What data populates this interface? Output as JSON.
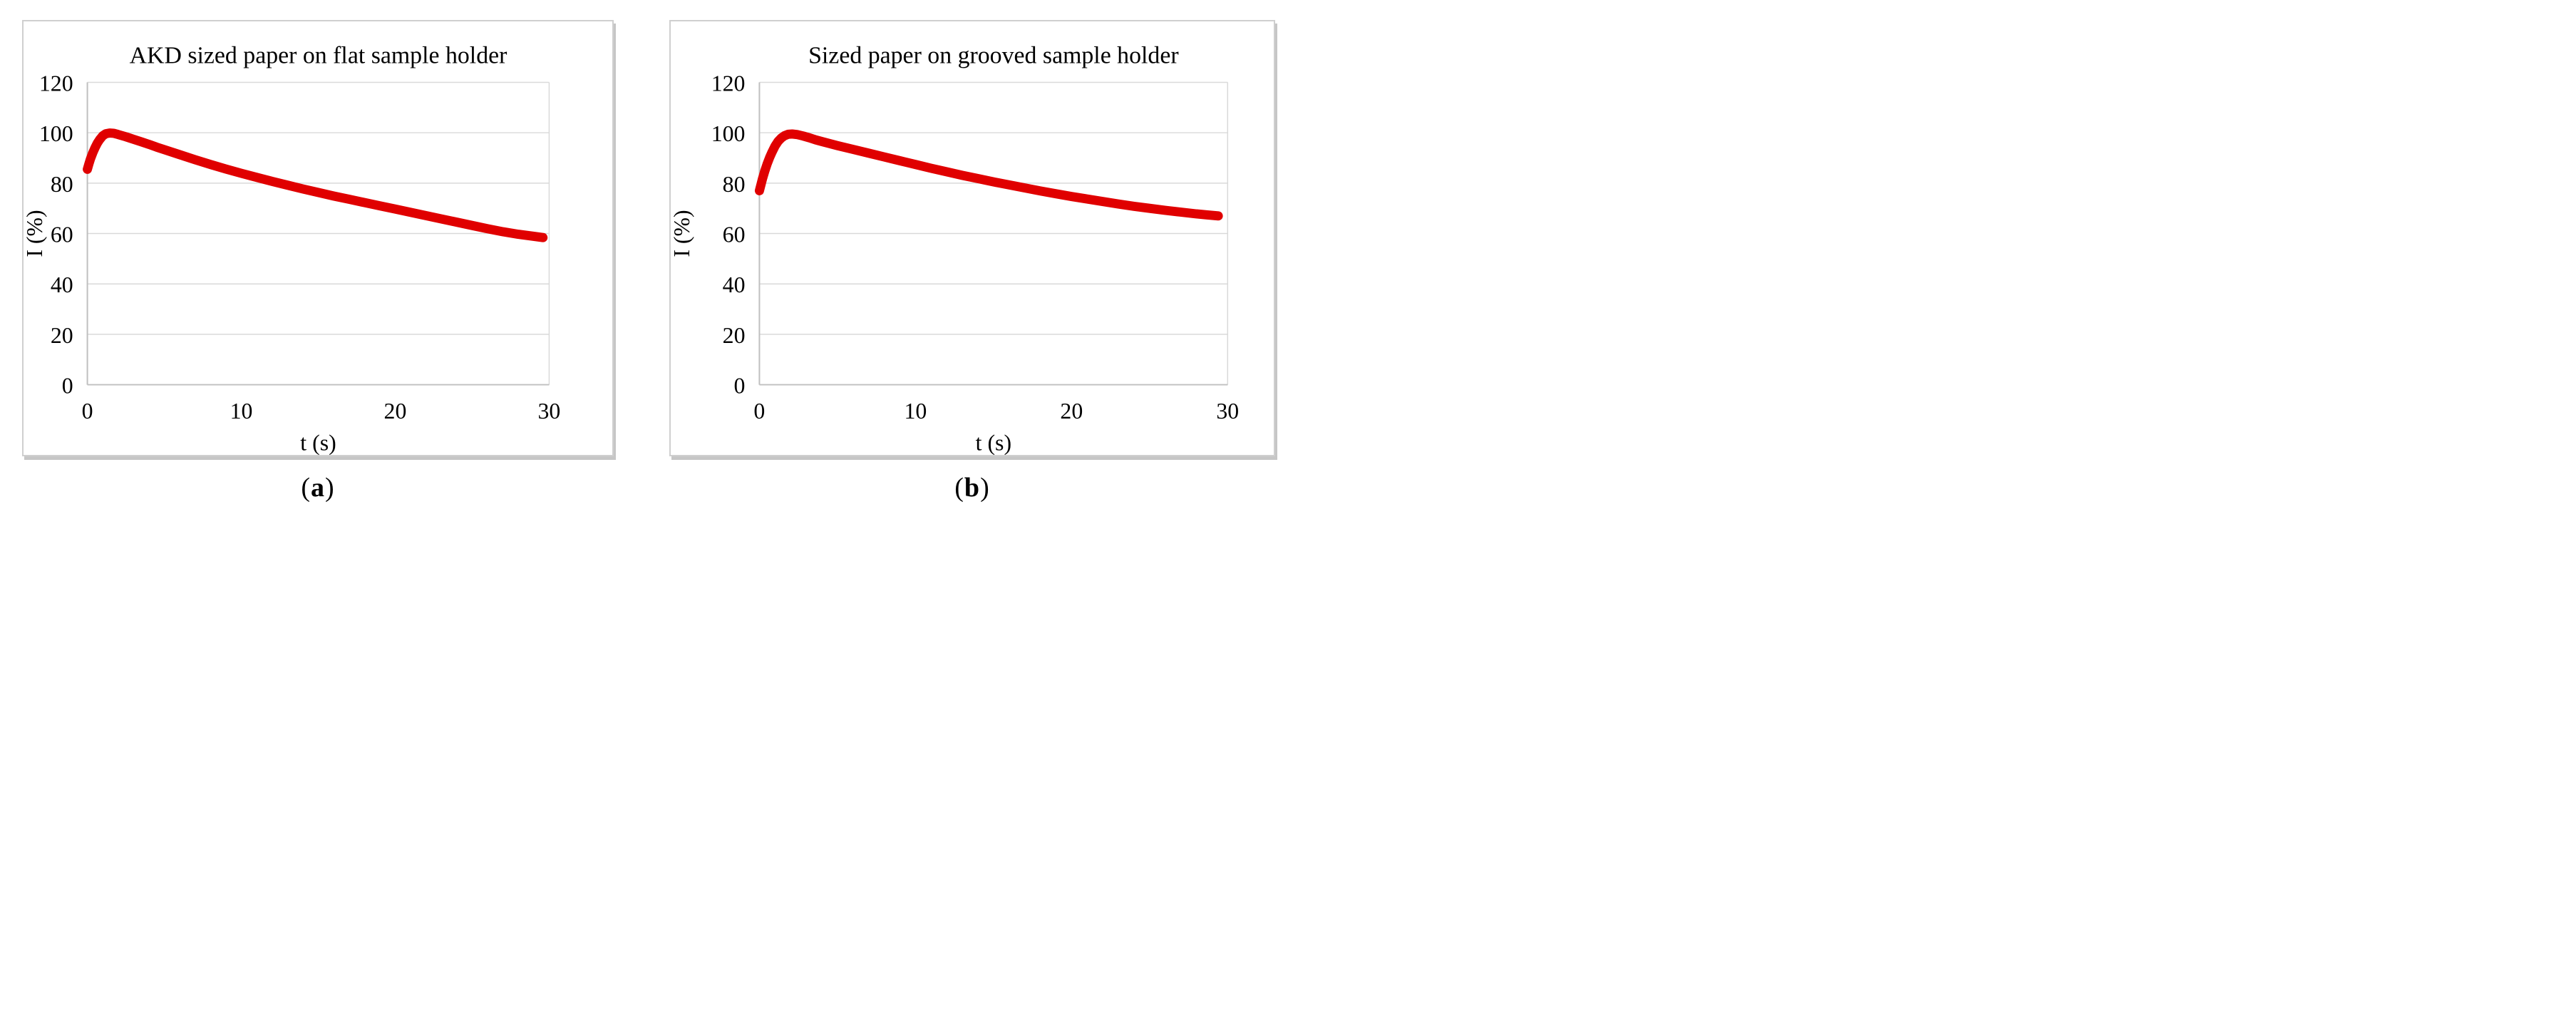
{
  "figure": {
    "description": "Two-panel luminescence decay figure",
    "captions": [
      {
        "open": "(",
        "letter": "a",
        "close": ")"
      },
      {
        "open": "(",
        "letter": "b",
        "close": ")"
      }
    ]
  },
  "chart_data": [
    {
      "type": "line",
      "title": "AKD sized paper on flat sample holder",
      "xlabel": "t (s)",
      "ylabel": "I (%)",
      "xlim": [
        0,
        30
      ],
      "ylim": [
        0,
        120
      ],
      "x_ticks": [
        0,
        10,
        20,
        30
      ],
      "y_ticks": [
        0,
        20,
        40,
        60,
        80,
        100,
        120
      ],
      "grid": "horizontal",
      "legend": "none",
      "line_color": "#e00000",
      "gridline_color": "#d9d9d9",
      "axis_color": "#bfbfbf",
      "series": [
        {
          "name": "intensity-decay",
          "points": [
            [
              0,
              85.5
            ],
            [
              0.1,
              87.6
            ],
            [
              0.2,
              89.6
            ],
            [
              0.35,
              92.0
            ],
            [
              0.5,
              94.1
            ],
            [
              0.65,
              95.9
            ],
            [
              0.8,
              97.3
            ],
            [
              1.0,
              98.8
            ],
            [
              1.2,
              99.6
            ],
            [
              1.45,
              99.9
            ],
            [
              1.7,
              99.8
            ],
            [
              2.0,
              99.3
            ],
            [
              2.5,
              98.4
            ],
            [
              3.0,
              97.4
            ],
            [
              3.5,
              96.4
            ],
            [
              4.0,
              95.4
            ],
            [
              4.5,
              94.3
            ],
            [
              5.0,
              93.3
            ],
            [
              6.0,
              91.3
            ],
            [
              7.0,
              89.3
            ],
            [
              8.0,
              87.4
            ],
            [
              9.0,
              85.6
            ],
            [
              10.0,
              83.9
            ],
            [
              11.0,
              82.3
            ],
            [
              12.0,
              80.7
            ],
            [
              13.0,
              79.2
            ],
            [
              14.0,
              77.7
            ],
            [
              15.0,
              76.3
            ],
            [
              16.0,
              74.9
            ],
            [
              17.0,
              73.6
            ],
            [
              18.0,
              72.3
            ],
            [
              19.0,
              71.0
            ],
            [
              20.0,
              69.7
            ],
            [
              21.0,
              68.4
            ],
            [
              22.0,
              67.1
            ],
            [
              23.0,
              65.8
            ],
            [
              24.0,
              64.5
            ],
            [
              25.0,
              63.2
            ],
            [
              26.0,
              61.9
            ],
            [
              27.0,
              60.7
            ],
            [
              28.0,
              59.7
            ],
            [
              29.0,
              58.9
            ],
            [
              29.6,
              58.4
            ]
          ]
        }
      ]
    },
    {
      "type": "line",
      "title": "Sized paper on grooved sample holder",
      "xlabel": "t (s)",
      "ylabel": "I (%)",
      "xlim": [
        0,
        30
      ],
      "ylim": [
        0,
        120
      ],
      "x_ticks": [
        0,
        10,
        20,
        30
      ],
      "y_ticks": [
        0,
        20,
        40,
        60,
        80,
        100,
        120
      ],
      "grid": "horizontal",
      "legend": "none",
      "line_color": "#e00000",
      "gridline_color": "#d9d9d9",
      "axis_color": "#bfbfbf",
      "series": [
        {
          "name": "intensity-decay",
          "points": [
            [
              0,
              77.0
            ],
            [
              0.1,
              79.4
            ],
            [
              0.2,
              81.8
            ],
            [
              0.35,
              84.9
            ],
            [
              0.5,
              87.7
            ],
            [
              0.65,
              90.1
            ],
            [
              0.8,
              92.2
            ],
            [
              1.0,
              94.7
            ],
            [
              1.2,
              96.6
            ],
            [
              1.4,
              97.9
            ],
            [
              1.6,
              98.8
            ],
            [
              1.85,
              99.4
            ],
            [
              2.1,
              99.5
            ],
            [
              2.4,
              99.3
            ],
            [
              2.8,
              98.7
            ],
            [
              3.2,
              98.0
            ],
            [
              3.6,
              97.2
            ],
            [
              4.0,
              96.5
            ],
            [
              4.5,
              95.7
            ],
            [
              5.0,
              94.9
            ],
            [
              6.0,
              93.4
            ],
            [
              7.0,
              91.9
            ],
            [
              8.0,
              90.4
            ],
            [
              9.0,
              88.9
            ],
            [
              10.0,
              87.4
            ],
            [
              11.0,
              85.9
            ],
            [
              12.0,
              84.5
            ],
            [
              13.0,
              83.1
            ],
            [
              14.0,
              81.8
            ],
            [
              15.0,
              80.5
            ],
            [
              16.0,
              79.3
            ],
            [
              17.0,
              78.1
            ],
            [
              18.0,
              76.9
            ],
            [
              19.0,
              75.8
            ],
            [
              20.0,
              74.7
            ],
            [
              21.0,
              73.7
            ],
            [
              22.0,
              72.7
            ],
            [
              23.0,
              71.7
            ],
            [
              24.0,
              70.8
            ],
            [
              25.0,
              70.0
            ],
            [
              26.0,
              69.2
            ],
            [
              27.0,
              68.5
            ],
            [
              28.0,
              67.8
            ],
            [
              28.7,
              67.4
            ],
            [
              29.4,
              67.0
            ]
          ]
        }
      ]
    }
  ]
}
